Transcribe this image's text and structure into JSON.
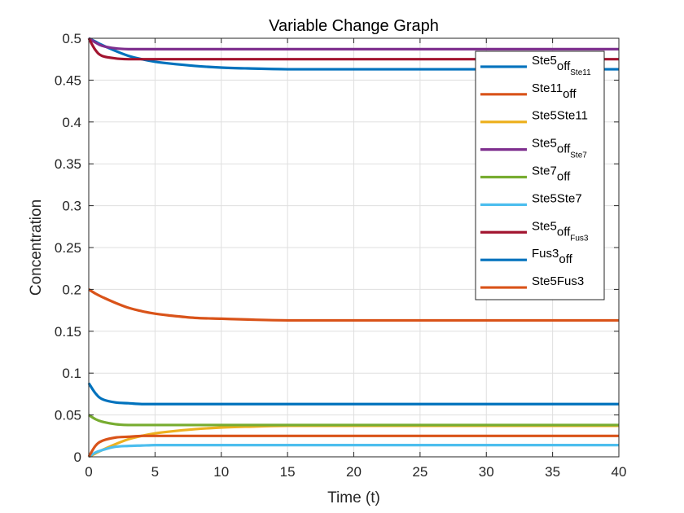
{
  "chart_data": {
    "type": "line",
    "title": "Variable Change Graph",
    "xlabel": "Time (t)",
    "ylabel": "Concentration",
    "xlim": [
      0,
      40
    ],
    "ylim": [
      0,
      0.5
    ],
    "xticks": [
      0,
      5,
      10,
      15,
      20,
      25,
      30,
      35,
      40
    ],
    "xtick_labels": [
      "0",
      "5",
      "10",
      "15",
      "20",
      "25",
      "30",
      "35",
      "40"
    ],
    "yticks": [
      0,
      0.05,
      0.1,
      0.15,
      0.2,
      0.25,
      0.3,
      0.35,
      0.4,
      0.45,
      0.5
    ],
    "ytick_labels": [
      "0",
      "0.05",
      "0.1",
      "0.15",
      "0.2",
      "0.25",
      "0.3",
      "0.35",
      "0.4",
      "0.45",
      "0.5"
    ],
    "grid": true,
    "legend_position": "top-right",
    "x": [
      0,
      0.5,
      1,
      2,
      3,
      4,
      5,
      6,
      8,
      10,
      12,
      15,
      20,
      25,
      30,
      35,
      40
    ],
    "series": [
      {
        "name": "Ste5off_Ste11",
        "label": {
          "main": "Ste5",
          "sub": "off",
          "subsub": "Ste11"
        },
        "color": "#0072BD",
        "values": [
          0.5,
          0.496,
          0.492,
          0.485,
          0.479,
          0.475,
          0.472,
          0.47,
          0.467,
          0.465,
          0.464,
          0.463,
          0.463,
          0.463,
          0.463,
          0.463,
          0.463
        ]
      },
      {
        "name": "Ste11off",
        "label": {
          "main": "Ste11",
          "sub": "off",
          "subsub": ""
        },
        "color": "#D95319",
        "values": [
          0.2,
          0.195,
          0.191,
          0.184,
          0.178,
          0.174,
          0.171,
          0.169,
          0.166,
          0.165,
          0.164,
          0.163,
          0.163,
          0.163,
          0.163,
          0.163,
          0.163
        ]
      },
      {
        "name": "Ste5Ste11",
        "label": {
          "main": "Ste5Ste11",
          "sub": "",
          "subsub": ""
        },
        "color": "#EDB120",
        "values": [
          0,
          0.004,
          0.008,
          0.015,
          0.021,
          0.025,
          0.028,
          0.03,
          0.033,
          0.035,
          0.036,
          0.037,
          0.037,
          0.037,
          0.037,
          0.037,
          0.037
        ]
      },
      {
        "name": "Ste5off_Ste7",
        "label": {
          "main": "Ste5",
          "sub": "off",
          "subsub": "Ste7"
        },
        "color": "#7E2F8E",
        "values": [
          0.5,
          0.495,
          0.491,
          0.488,
          0.487,
          0.487,
          0.487,
          0.487,
          0.487,
          0.487,
          0.487,
          0.487,
          0.487,
          0.487,
          0.487,
          0.487,
          0.487
        ]
      },
      {
        "name": "Ste7off",
        "label": {
          "main": "Ste7",
          "sub": "off",
          "subsub": ""
        },
        "color": "#77AC30",
        "values": [
          0.05,
          0.045,
          0.042,
          0.039,
          0.038,
          0.038,
          0.038,
          0.038,
          0.038,
          0.038,
          0.038,
          0.038,
          0.038,
          0.038,
          0.038,
          0.038,
          0.038
        ]
      },
      {
        "name": "Ste5Ste7",
        "label": {
          "main": "Ste5Ste7",
          "sub": "",
          "subsub": ""
        },
        "color": "#4DBEEE",
        "values": [
          0,
          0.005,
          0.008,
          0.012,
          0.013,
          0.0135,
          0.014,
          0.014,
          0.014,
          0.014,
          0.014,
          0.014,
          0.014,
          0.014,
          0.014,
          0.014,
          0.014
        ]
      },
      {
        "name": "Ste5off_Fus3",
        "label": {
          "main": "Ste5",
          "sub": "off",
          "subsub": "Fus3"
        },
        "color": "#A2142F",
        "values": [
          0.5,
          0.486,
          0.479,
          0.476,
          0.475,
          0.475,
          0.475,
          0.475,
          0.475,
          0.475,
          0.475,
          0.475,
          0.475,
          0.475,
          0.475,
          0.475,
          0.475
        ]
      },
      {
        "name": "Fus3off",
        "label": {
          "main": "Fus3",
          "sub": "off",
          "subsub": ""
        },
        "color": "#0072BD",
        "values": [
          0.088,
          0.076,
          0.069,
          0.065,
          0.064,
          0.063,
          0.063,
          0.063,
          0.063,
          0.063,
          0.063,
          0.063,
          0.063,
          0.063,
          0.063,
          0.063,
          0.063
        ]
      },
      {
        "name": "Ste5Fus3",
        "label": {
          "main": "Ste5Fus3",
          "sub": "",
          "subsub": ""
        },
        "color": "#D95319",
        "values": [
          0,
          0.013,
          0.019,
          0.023,
          0.024,
          0.025,
          0.025,
          0.025,
          0.025,
          0.025,
          0.025,
          0.025,
          0.025,
          0.025,
          0.025,
          0.025,
          0.025
        ]
      }
    ]
  }
}
